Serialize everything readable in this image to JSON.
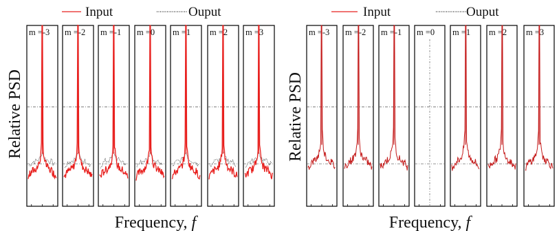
{
  "chart_data": [
    {
      "type": "line",
      "ylabel": "Relative PSD",
      "xlabel": "Frequency, f",
      "legend": {
        "placement": "top",
        "entries": [
          "Input",
          "Ouput"
        ]
      },
      "panel_labels": [
        "m =-3",
        "m =-2",
        "m =-1",
        "m =0",
        "m =1",
        "m =2",
        "m =3"
      ],
      "grid_y_levels": [
        0.55,
        0.235
      ],
      "series": [
        {
          "name": "Input",
          "color": "#e8201e",
          "style": "solid",
          "peak": 1.0,
          "plateau": 0.17
        },
        {
          "name": "Ouput",
          "color": "#222222",
          "style": "dotted",
          "peak": 0.3,
          "plateau": 0.24
        }
      ]
    },
    {
      "type": "line",
      "ylabel": "Relative PSD",
      "xlabel": "Frequency, f",
      "legend": {
        "placement": "top",
        "entries": [
          "Input",
          "Ouput"
        ]
      },
      "panel_labels": [
        "m =-3",
        "m =-2",
        "m =-1",
        "m =0",
        "m =1",
        "m =2",
        "m =3"
      ],
      "grid_y_levels": [
        0.55,
        0.235
      ],
      "series": [
        {
          "name": "Input",
          "color": "#c41a1a",
          "style": "solid",
          "peak": 1.0,
          "plateau": 0.22,
          "absent_in_panel": "m =0"
        },
        {
          "name": "Ouput",
          "color": "#555555",
          "style": "dash-dot",
          "note_panel": "m =0"
        }
      ]
    }
  ]
}
